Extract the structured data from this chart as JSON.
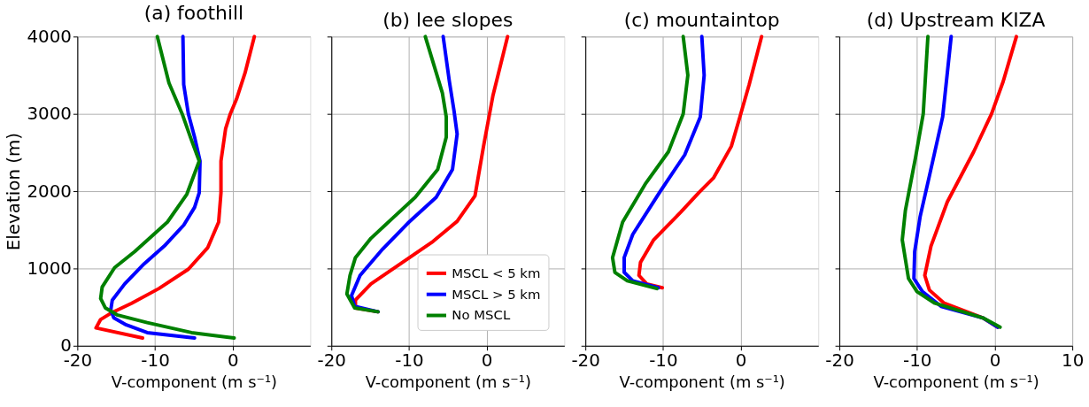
{
  "chart_data": [
    {
      "type": "line",
      "title": "(a) foothill",
      "xlabel": "V-component (m s⁻¹)",
      "ylabel": "Elevation (m)",
      "xlim": [
        -20,
        10
      ],
      "xticks": [
        -20,
        -10,
        0
      ],
      "ylim": [
        0,
        4000
      ],
      "yticks": [
        0,
        1000,
        2000,
        3000,
        4000
      ],
      "grid": true,
      "legend": false,
      "series": [
        {
          "color": "#ff0000",
          "x": [
            -11.6,
            -17.6,
            -17.0,
            -15.7,
            -13.0,
            -9.5,
            -5.7,
            -3.2,
            -1.8,
            -1.5,
            -1.5,
            -0.9,
            -0.3,
            0.5,
            1.6,
            2.8
          ],
          "values": [
            100,
            230,
            340,
            420,
            550,
            740,
            990,
            1270,
            1600,
            1980,
            2390,
            2810,
            3000,
            3190,
            3530,
            4000
          ]
        },
        {
          "color": "#0000ff",
          "x": [
            -4.9,
            -11.0,
            -13.7,
            -15.3,
            -15.7,
            -15.5,
            -13.9,
            -11.4,
            -8.8,
            -6.3,
            -4.9,
            -4.3,
            -4.2,
            -4.9,
            -5.7,
            -6.3,
            -6.4
          ],
          "values": [
            100,
            170,
            270,
            360,
            460,
            590,
            800,
            1060,
            1290,
            1560,
            1790,
            1980,
            2390,
            2700,
            3000,
            3380,
            4000
          ]
        },
        {
          "color": "#008000",
          "x": [
            0.2,
            -5.3,
            -11.0,
            -14.9,
            -16.4,
            -17.0,
            -16.8,
            -15.2,
            -12.6,
            -8.4,
            -5.9,
            -4.3,
            -5.3,
            -6.5,
            -8.2,
            -9.7
          ],
          "values": [
            100,
            170,
            300,
            400,
            490,
            610,
            760,
            1010,
            1220,
            1600,
            1960,
            2390,
            2660,
            3000,
            3400,
            4000
          ]
        }
      ]
    },
    {
      "type": "line",
      "title": "(b) lee slopes",
      "xlabel": "V-component (m s⁻¹)",
      "xlim": [
        -20,
        10
      ],
      "xticks": [
        -20,
        -10,
        0
      ],
      "ylim": [
        0,
        4000
      ],
      "yticks": [
        0,
        1000,
        2000,
        3000,
        4000
      ],
      "tick_labels": "x",
      "grid": true,
      "legend": "bottom right",
      "series": [
        {
          "name": "MSCL < 5 km",
          "color": "#ff0000",
          "x": [
            -14.0,
            -16.9,
            -16.9,
            -14.9,
            -11.1,
            -6.9,
            -3.8,
            -1.5,
            -0.4,
            0.8,
            2.7
          ],
          "values": [
            440,
            490,
            590,
            800,
            1060,
            1350,
            1610,
            1940,
            2580,
            3230,
            4000
          ]
        },
        {
          "name": "MSCL > 5 km",
          "color": "#0000ff",
          "x": [
            -14.0,
            -17.0,
            -17.4,
            -16.3,
            -13.4,
            -10.0,
            -6.5,
            -4.4,
            -3.8,
            -4.2,
            -4.8,
            -5.6
          ],
          "values": [
            440,
            510,
            650,
            910,
            1250,
            1600,
            1920,
            2280,
            2740,
            3040,
            3420,
            4000
          ]
        },
        {
          "name": "No MSCL",
          "color": "#008000",
          "x": [
            -14.0,
            -17.0,
            -18.0,
            -17.6,
            -16.9,
            -14.9,
            -11.9,
            -9.2,
            -6.3,
            -5.2,
            -5.2,
            -5.7,
            -7.9
          ],
          "values": [
            440,
            490,
            670,
            910,
            1140,
            1390,
            1670,
            1920,
            2280,
            2700,
            2960,
            3270,
            4000
          ]
        }
      ]
    },
    {
      "type": "line",
      "title": "(c) mountaintop",
      "xlabel": "V-component (m s⁻¹)",
      "xlim": [
        -20,
        10
      ],
      "xticks": [
        -20,
        -10,
        0
      ],
      "ylim": [
        0,
        4000
      ],
      "yticks": [
        0,
        1000,
        2000,
        3000,
        4000
      ],
      "tick_labels": "x",
      "grid": true,
      "legend": false,
      "series": [
        {
          "color": "#ff0000",
          "x": [
            -10.1,
            -12.1,
            -13.1,
            -12.9,
            -11.2,
            -7.7,
            -5.4,
            -3.5,
            -1.2,
            -0.1,
            1.1,
            2.7
          ],
          "values": [
            750,
            800,
            910,
            1080,
            1370,
            1730,
            1980,
            2170,
            2580,
            2960,
            3380,
            4000
          ]
        },
        {
          "color": "#0000ff",
          "x": [
            -10.6,
            -13.9,
            -15.0,
            -15.0,
            -13.9,
            -10.4,
            -7.2,
            -5.2,
            -4.7,
            -5.0
          ],
          "values": [
            750,
            840,
            950,
            1140,
            1440,
            1990,
            2470,
            2960,
            3500,
            4000
          ]
        },
        {
          "color": "#008000",
          "x": [
            -10.8,
            -14.6,
            -16.2,
            -16.5,
            -15.2,
            -12.3,
            -9.3,
            -7.4,
            -6.8,
            -7.4
          ],
          "values": [
            740,
            840,
            950,
            1140,
            1600,
            2090,
            2510,
            3000,
            3500,
            4000
          ]
        }
      ]
    },
    {
      "type": "line",
      "title": "(d) Upstream KIZA",
      "xlabel": "V-component (m s⁻¹)",
      "xlim": [
        -20,
        10
      ],
      "xticks": [
        -20,
        -10,
        0,
        10
      ],
      "ylim": [
        0,
        4000
      ],
      "yticks": [
        0,
        1000,
        2000,
        3000,
        4000
      ],
      "tick_labels": "x",
      "grid": true,
      "legend": false,
      "series": [
        {
          "color": "#ff0000",
          "x": [
            0.4,
            -1.5,
            -6.5,
            -8.4,
            -9.0,
            -8.2,
            -6.1,
            -2.7,
            -0.4,
            1.1,
            2.8
          ],
          "values": [
            240,
            360,
            550,
            720,
            910,
            1290,
            1860,
            2510,
            3000,
            3420,
            4000
          ]
        },
        {
          "color": "#0000ff",
          "x": [
            0.4,
            -1.5,
            -6.9,
            -9.3,
            -10.4,
            -10.3,
            -9.6,
            -8.4,
            -6.7,
            -5.6
          ],
          "values": [
            240,
            360,
            510,
            700,
            870,
            1220,
            1670,
            2200,
            2960,
            4000
          ]
        },
        {
          "color": "#008000",
          "x": [
            0.7,
            -1.5,
            -7.7,
            -10.0,
            -11.1,
            -11.9,
            -11.5,
            -10.2,
            -9.2,
            -8.6
          ],
          "values": [
            240,
            360,
            550,
            700,
            870,
            1370,
            1750,
            2430,
            3000,
            4000
          ]
        }
      ]
    }
  ]
}
